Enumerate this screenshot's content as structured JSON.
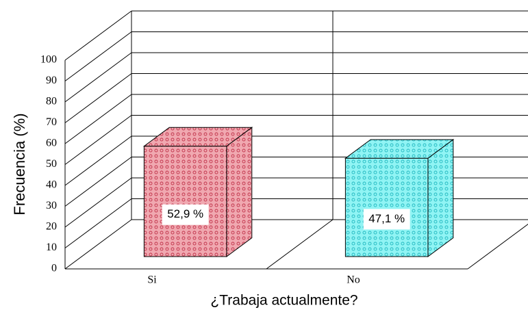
{
  "chart_data": {
    "type": "bar3d",
    "categories": [
      "Si",
      "No"
    ],
    "values": [
      52.9,
      47.1
    ],
    "value_labels": [
      "52,9 %",
      "47,1 %"
    ],
    "colors": [
      "#f0a8b0",
      "#90f4f4"
    ],
    "pattern_colors": [
      "#c03048",
      "#20b8c0"
    ],
    "ylim": [
      0,
      100
    ],
    "yticks": [
      0,
      10,
      20,
      30,
      40,
      50,
      60,
      70,
      80,
      90,
      100
    ],
    "ylabel": "Frecuencia (%)",
    "xlabel": "¿Trabaja actualmente?",
    "grid": true
  }
}
